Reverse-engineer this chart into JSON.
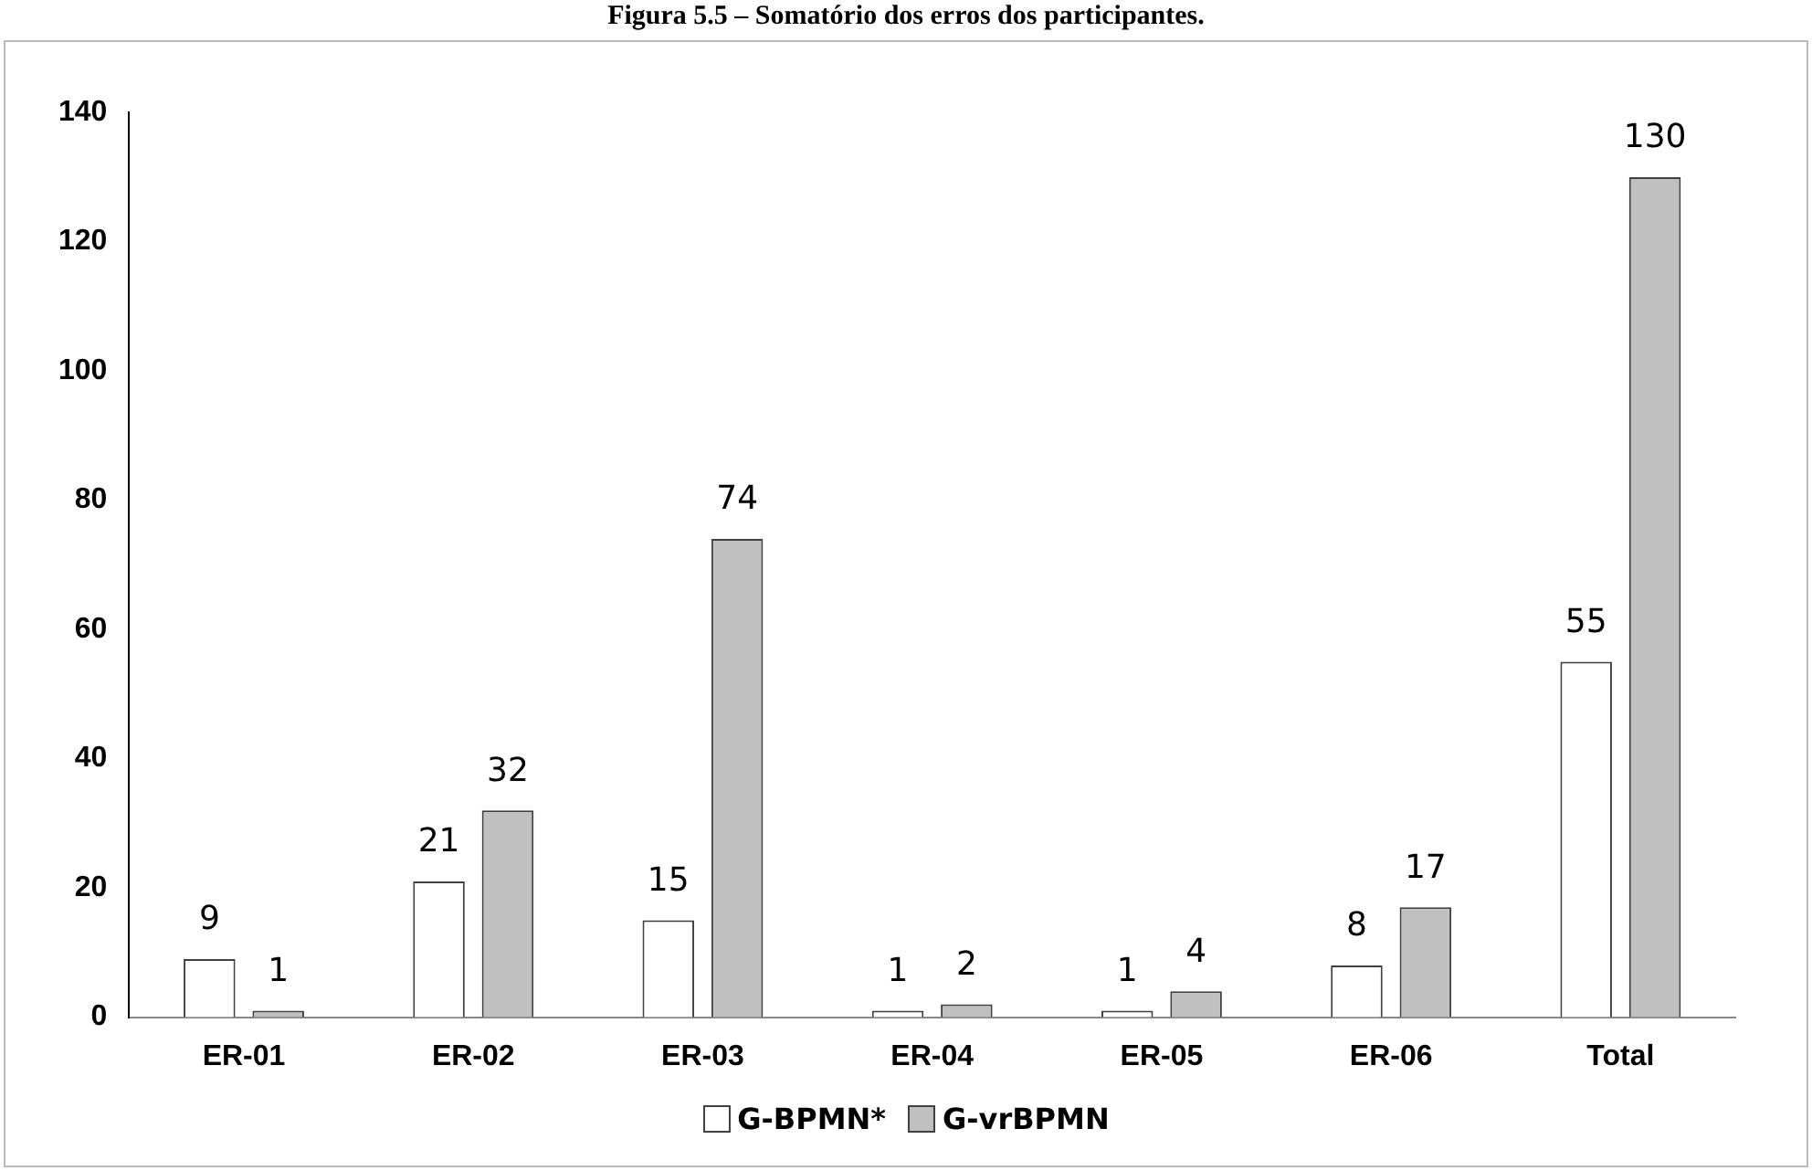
{
  "chart_data": {
    "type": "bar",
    "title": "Figura 5.5 – Somatório dos erros dos participantes.",
    "categories": [
      "ER-01",
      "ER-02",
      "ER-03",
      "ER-04",
      "ER-05",
      "ER-06",
      "Total"
    ],
    "series": [
      {
        "name": "G-BPMN*",
        "color": "#ffffff",
        "values": [
          9,
          21,
          15,
          1,
          1,
          8,
          55
        ]
      },
      {
        "name": "G-vrBPMN",
        "color": "#c0c0c0",
        "values": [
          1,
          32,
          74,
          2,
          4,
          17,
          130
        ]
      }
    ],
    "ylim": [
      0,
      140
    ],
    "yticks": [
      0,
      20,
      40,
      60,
      80,
      100,
      120,
      140
    ],
    "grid": false,
    "legend": "bottom",
    "data_labels": true
  }
}
